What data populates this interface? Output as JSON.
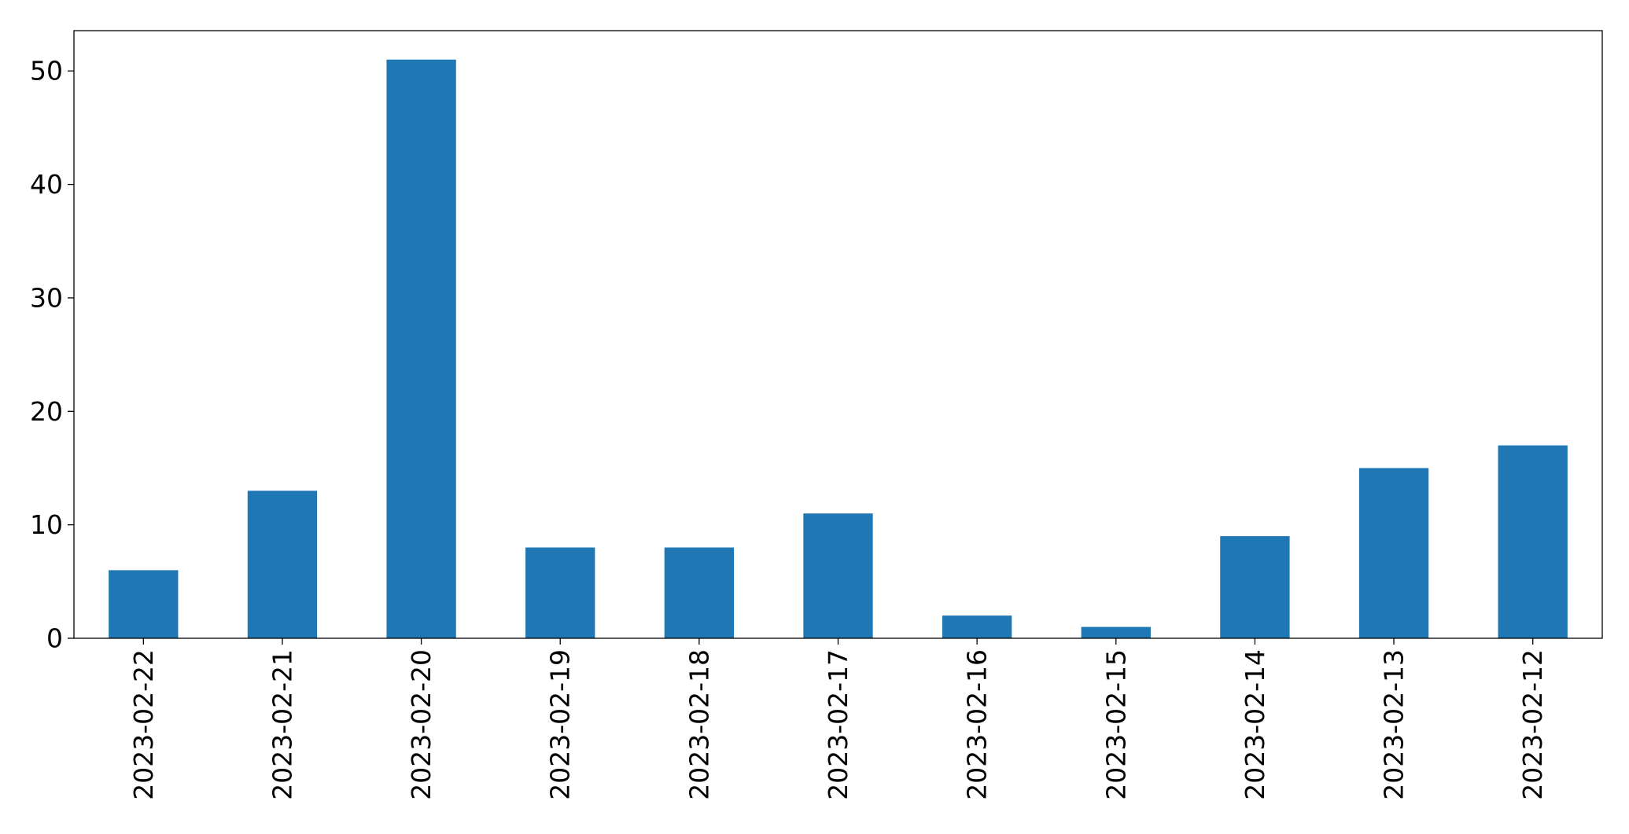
{
  "chart_data": {
    "type": "bar",
    "categories": [
      "2023-02-22",
      "2023-02-21",
      "2023-02-20",
      "2023-02-19",
      "2023-02-18",
      "2023-02-17",
      "2023-02-16",
      "2023-02-15",
      "2023-02-14",
      "2023-02-13",
      "2023-02-12"
    ],
    "values": [
      6,
      13,
      51,
      8,
      8,
      11,
      2,
      1,
      9,
      15,
      17
    ],
    "title": "",
    "xlabel": "",
    "ylabel": "",
    "ylim": [
      0,
      53.55
    ],
    "yticks": [
      0,
      10,
      20,
      30,
      40,
      50
    ],
    "grid": false,
    "bar_color": "#1f77b4",
    "x_tick_rotation": "vertical"
  }
}
